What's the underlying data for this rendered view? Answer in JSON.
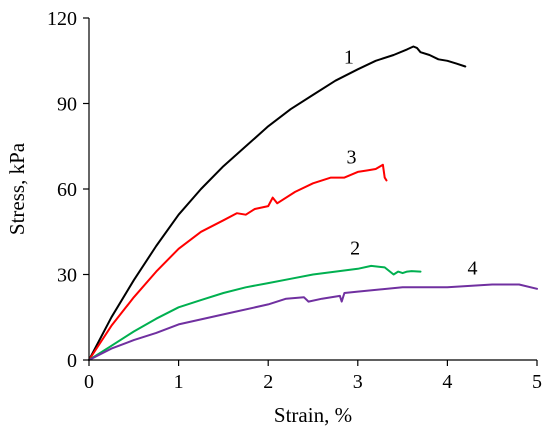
{
  "chart_data": {
    "type": "line",
    "xlabel": "Strain, %",
    "ylabel": "Stress, kPa",
    "xlim": [
      0,
      5
    ],
    "ylim": [
      0,
      120
    ],
    "xticks": [
      0,
      1,
      2,
      3,
      4,
      5
    ],
    "yticks": [
      0,
      30,
      60,
      90,
      120
    ],
    "grid": false,
    "legend": "none",
    "series": [
      {
        "label": "1",
        "color": "#000000",
        "x": [
          0,
          0.25,
          0.5,
          0.75,
          1.0,
          1.25,
          1.5,
          1.75,
          2.0,
          2.25,
          2.5,
          2.75,
          3.0,
          3.2,
          3.4,
          3.55,
          3.62,
          3.66,
          3.7,
          3.8,
          3.9,
          4.0,
          4.1,
          4.2
        ],
        "y": [
          0,
          15,
          28,
          40,
          51,
          60,
          68,
          75,
          82,
          88,
          93,
          98,
          102,
          105,
          107,
          109,
          110,
          109.5,
          108,
          107,
          105.5,
          105,
          104,
          103
        ]
      },
      {
        "label": "3",
        "color": "#ff0000",
        "x": [
          0,
          0.25,
          0.5,
          0.75,
          1.0,
          1.25,
          1.5,
          1.65,
          1.75,
          1.85,
          2.0,
          2.05,
          2.1,
          2.3,
          2.5,
          2.7,
          2.85,
          3.0,
          3.1,
          3.2,
          3.28,
          3.3,
          3.32
        ],
        "y": [
          0,
          12,
          22,
          31,
          39,
          45,
          49,
          51.5,
          51,
          53,
          54,
          57,
          55,
          59,
          62,
          64,
          64,
          66,
          66.5,
          67,
          68.5,
          64,
          63
        ]
      },
      {
        "label": "2",
        "color": "#00b050",
        "x": [
          0,
          0.25,
          0.5,
          0.75,
          1.0,
          1.25,
          1.5,
          1.75,
          2.0,
          2.25,
          2.5,
          2.75,
          3.0,
          3.15,
          3.3,
          3.4,
          3.45,
          3.5,
          3.55,
          3.6,
          3.7
        ],
        "y": [
          0,
          5,
          10,
          14.5,
          18.5,
          21,
          23.5,
          25.5,
          27,
          28.5,
          30,
          31,
          32,
          33,
          32.5,
          30,
          31,
          30.5,
          31,
          31.2,
          31
        ]
      },
      {
        "label": "4",
        "color": "#7030a0",
        "x": [
          0,
          0.25,
          0.5,
          0.75,
          1.0,
          1.5,
          2.0,
          2.2,
          2.4,
          2.45,
          2.6,
          2.8,
          2.82,
          2.85,
          3.0,
          3.5,
          4.0,
          4.5,
          4.8,
          5.0
        ],
        "y": [
          0,
          4,
          7,
          9.5,
          12.5,
          16,
          19.5,
          21.5,
          22,
          20.5,
          21.5,
          22.5,
          20.5,
          23.5,
          24,
          25.5,
          25.5,
          26.5,
          26.5,
          25
        ]
      }
    ],
    "annotations": [
      {
        "text": "1",
        "x": 2.9,
        "y": 104
      },
      {
        "text": "3",
        "x": 2.93,
        "y": 69
      },
      {
        "text": "2",
        "x": 2.97,
        "y": 37
      },
      {
        "text": "4",
        "x": 4.28,
        "y": 30
      }
    ]
  }
}
